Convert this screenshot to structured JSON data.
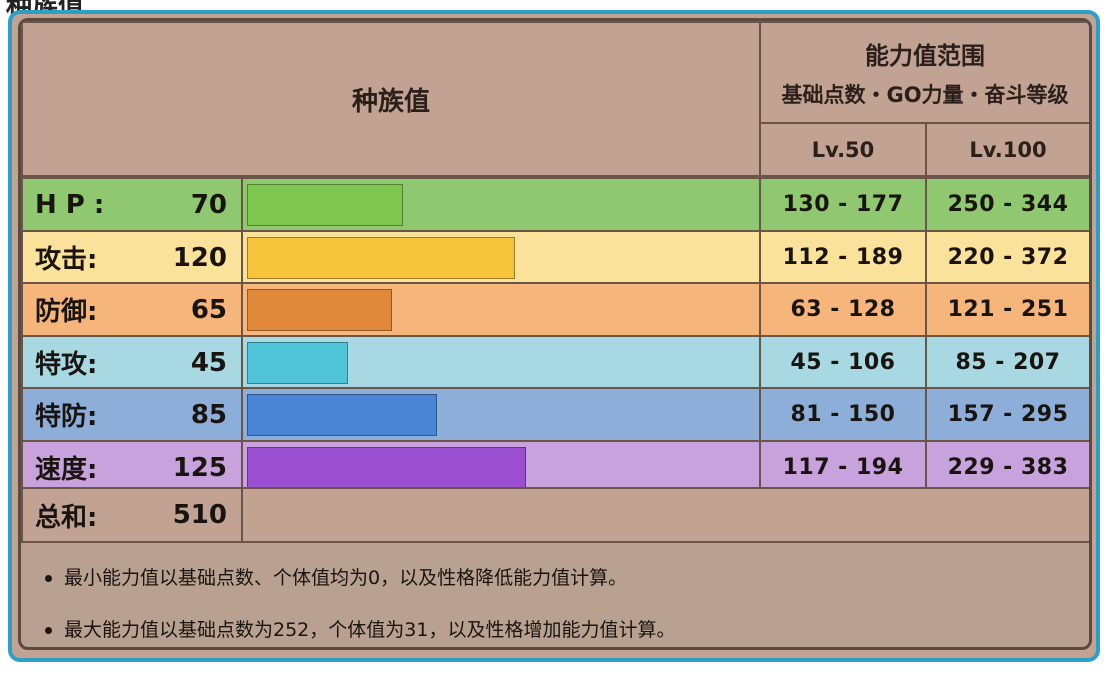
{
  "top_title": "种族值",
  "header": {
    "base_stats": "种族值",
    "range_title": "能力值范围",
    "range_subtitle": "基础点数・GO力量・奋斗等级",
    "lv50": "Lv.50",
    "lv100": "Lv.100"
  },
  "colors": {
    "hp": {
      "row": "#8fc870",
      "bar": "#7fc64f"
    },
    "atk": {
      "row": "#fbe29a",
      "bar": "#f5c43a"
    },
    "def": {
      "row": "#f5b57b",
      "bar": "#e0893a"
    },
    "spa": {
      "row": "#a8d8e1",
      "bar": "#4fc3d8"
    },
    "spd": {
      "row": "#8daed9",
      "bar": "#4a84d4"
    },
    "spe": {
      "row": "#c8a2dc",
      "bar": "#9a4fd0"
    }
  },
  "chart_data": {
    "type": "bar",
    "orientation": "horizontal",
    "categories": [
      "H P :",
      "攻击:",
      "防御:",
      "特攻:",
      "特防:",
      "速度:"
    ],
    "values": [
      70,
      120,
      65,
      45,
      85,
      125
    ],
    "xlim": [
      0,
      255
    ],
    "total_label": "总和:",
    "total": 510,
    "lv50_ranges": [
      "130 - 177",
      "112 - 189",
      "63 - 128",
      "45 - 106",
      "81 - 150",
      "117 - 194"
    ],
    "lv100_ranges": [
      "250 - 344",
      "220 - 372",
      "121 - 251",
      "85 - 207",
      "157 - 295",
      "229 - 383"
    ]
  },
  "notes": [
    "最小能力值以基础点数、个体值均为0，以及性格降低能力值计算。",
    "最大能力值以基础点数为252，个体值为31，以及性格增加能力值计算。"
  ]
}
